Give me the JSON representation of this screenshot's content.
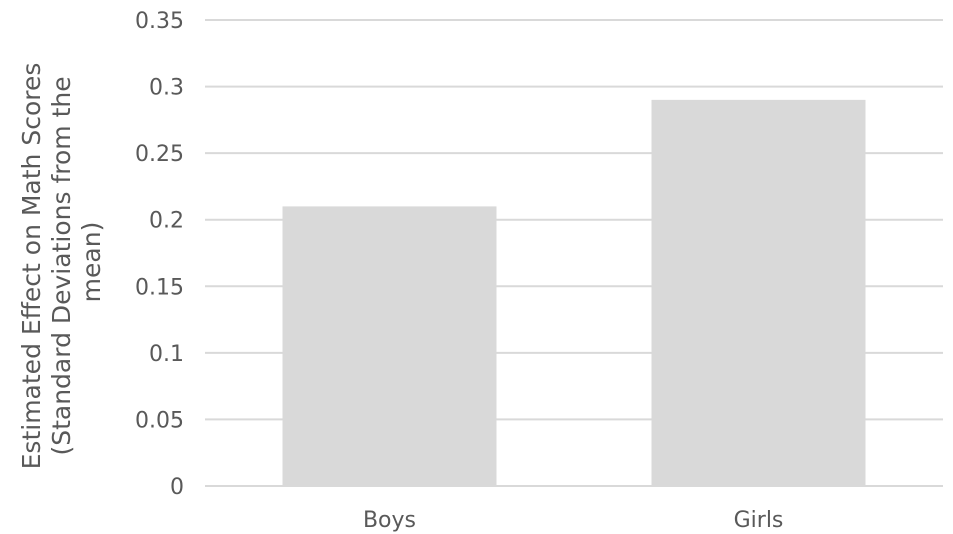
{
  "chart_data": {
    "type": "bar",
    "title": "",
    "xlabel": "",
    "ylabel_lines": [
      "Estimated Effect on Math Scores",
      "(Standard Deviations from the",
      "mean)"
    ],
    "categories": [
      "Boys",
      "Girls"
    ],
    "values": [
      0.21,
      0.29
    ],
    "ylim": [
      0,
      0.35
    ],
    "yticks": [
      "0",
      "0.05",
      "0.1",
      "0.15",
      "0.2",
      "0.25",
      "0.3",
      "0.35"
    ],
    "grid": true,
    "legend": "none",
    "colors": {
      "bar": "#d9d9d9",
      "grid": "#d9d9d9",
      "text": "#595959"
    }
  }
}
